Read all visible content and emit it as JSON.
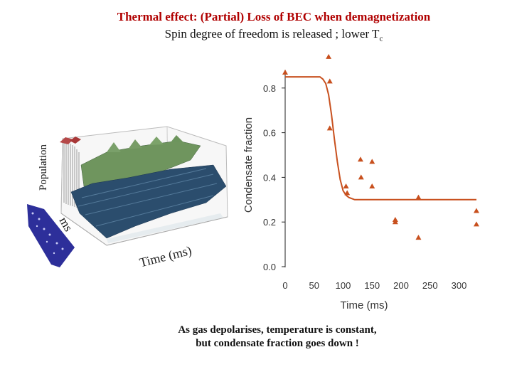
{
  "title": {
    "line1": "Thermal effect: (Partial) Loss of BEC when demagnetization",
    "line2_text": "Spin degree of freedom is released ; lower T",
    "line2_sub": "c"
  },
  "figure_3d": {
    "z_label": "Population",
    "side_label": "ms",
    "time_label": "Time (ms)",
    "colors": {
      "front_panel": "#2d2f9a",
      "surface_dark": "#2a4a6a",
      "surface_green": "#5f8a55"
    }
  },
  "caption": {
    "line1": "As gas depolarises, temperature is constant,",
    "line2": "but condensate fraction goes down !"
  },
  "chart_data": {
    "type": "scatter",
    "xlabel": "Time (ms)",
    "ylabel": "Condensate fraction",
    "xlim": [
      0,
      330
    ],
    "ylim": [
      0,
      0.95
    ],
    "x_ticks": [
      0,
      50,
      100,
      150,
      200,
      250,
      300
    ],
    "y_ticks": [
      0.0,
      0.2,
      0.4,
      0.6,
      0.8
    ],
    "y_tick_labels": [
      "0.0",
      "0.2",
      "0.4",
      "0.6",
      "0.8"
    ],
    "marker_color": "#c8501e",
    "series": [
      {
        "type": "scatter",
        "x": [
          0,
          75,
          77,
          77,
          105,
          107,
          130,
          131,
          150,
          150,
          190,
          190,
          230,
          230,
          330,
          330
        ],
        "y": [
          0.87,
          0.94,
          0.83,
          0.62,
          0.36,
          0.33,
          0.48,
          0.4,
          0.47,
          0.36,
          0.21,
          0.2,
          0.31,
          0.13,
          0.25,
          0.19
        ]
      },
      {
        "type": "line",
        "x": [
          0,
          30,
          60,
          65,
          70,
          75,
          80,
          85,
          90,
          95,
          100,
          105,
          110,
          120,
          140,
          200,
          330
        ],
        "y": [
          0.85,
          0.85,
          0.85,
          0.84,
          0.82,
          0.77,
          0.68,
          0.57,
          0.47,
          0.39,
          0.34,
          0.32,
          0.31,
          0.3,
          0.3,
          0.3,
          0.3
        ]
      }
    ]
  }
}
